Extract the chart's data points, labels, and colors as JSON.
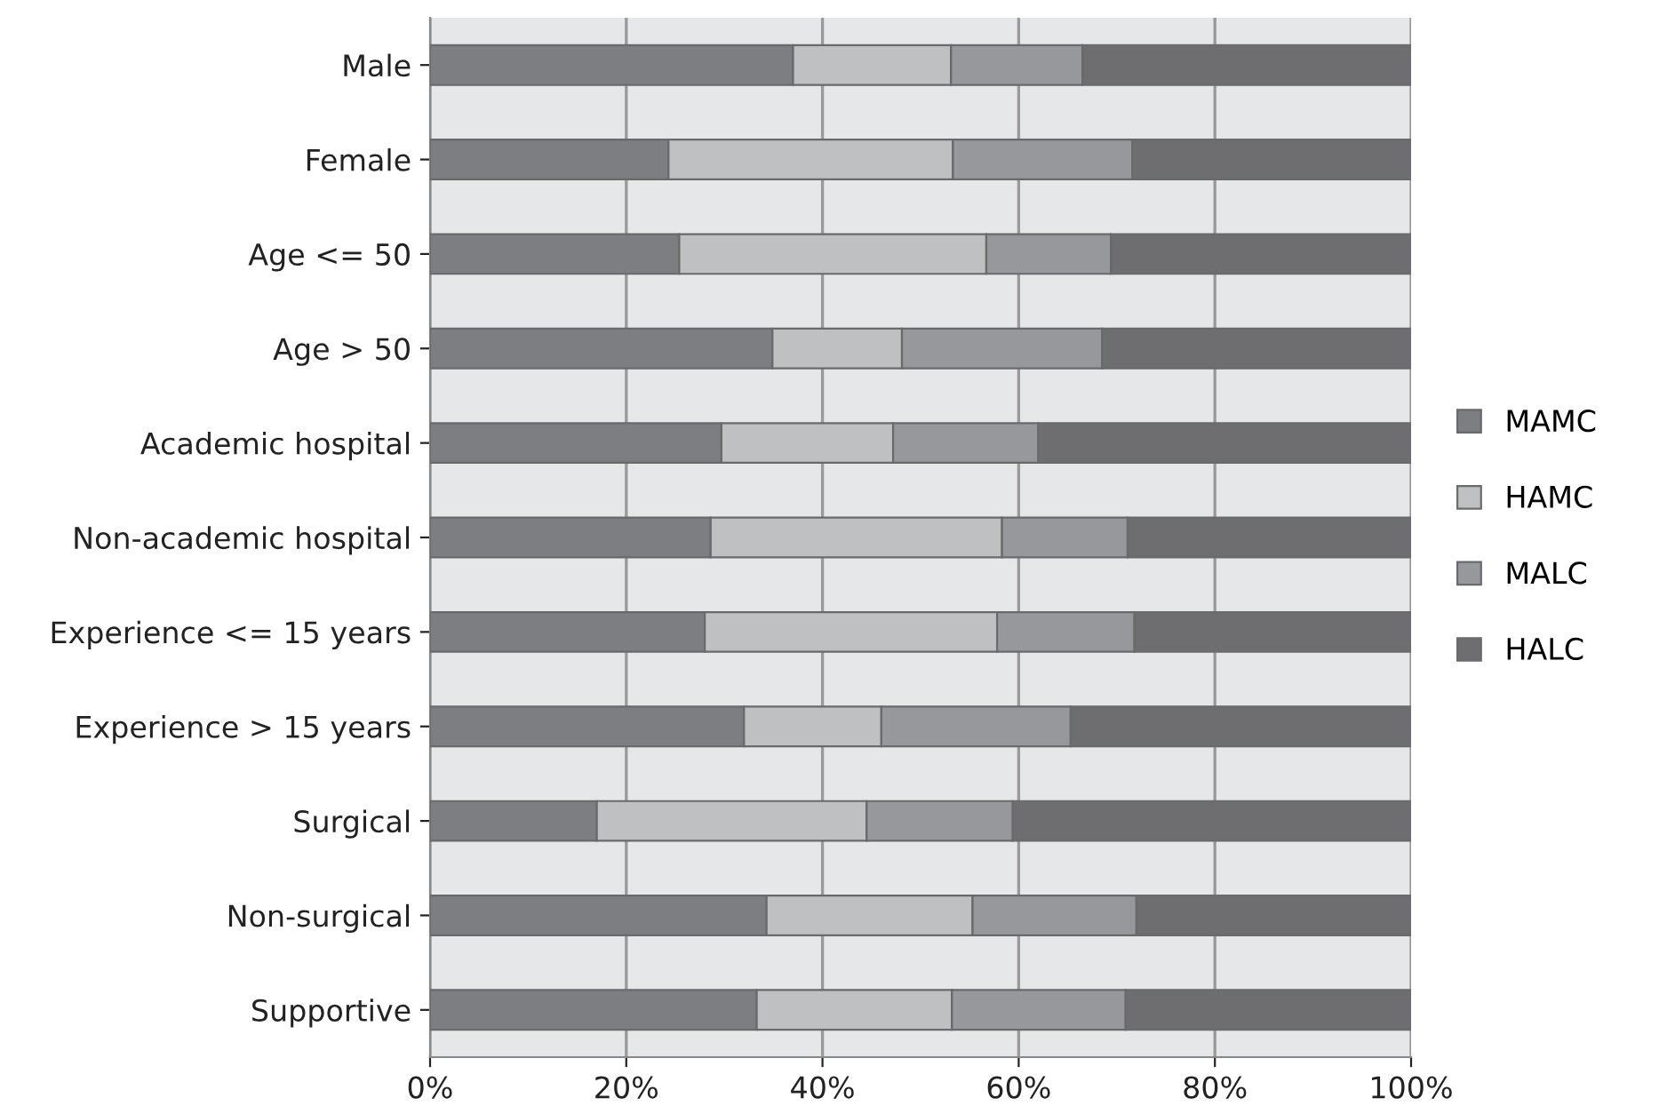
{
  "chart_data": {
    "type": "bar",
    "orientation": "horizontal",
    "stacked": true,
    "categories": [
      "Male",
      "Female",
      "Age <= 50",
      "Age > 50",
      "Academic hospital",
      "Non-academic hospital",
      "Experience <= 15 years",
      "Experience > 15 years",
      "Surgical",
      "Non-surgical",
      "Supportive"
    ],
    "series": [
      {
        "name": "MAMC",
        "color": "#7d7e82",
        "values": [
          37.0,
          24.3,
          25.4,
          34.9,
          29.7,
          28.6,
          28.0,
          32.0,
          17.0,
          34.3,
          33.3
        ]
      },
      {
        "name": "HAMC",
        "color": "#bfc0c2",
        "values": [
          16.1,
          29.0,
          31.3,
          13.2,
          17.5,
          29.7,
          29.8,
          14.0,
          27.5,
          21.0,
          19.9
        ]
      },
      {
        "name": "MALC",
        "color": "#97989c",
        "values": [
          13.4,
          18.3,
          12.7,
          20.4,
          14.8,
          12.8,
          14.0,
          19.3,
          14.9,
          16.7,
          17.7
        ]
      },
      {
        "name": "HALC",
        "color": "#6e6e70",
        "values": [
          33.5,
          28.4,
          30.6,
          31.5,
          38.0,
          28.9,
          28.2,
          34.7,
          40.6,
          28.0,
          29.1
        ]
      }
    ],
    "xlim": [
      0,
      100
    ],
    "xticks": [
      {
        "value": 0,
        "label": "0%"
      },
      {
        "value": 20,
        "label": "20%"
      },
      {
        "value": 40,
        "label": "40%"
      },
      {
        "value": 60,
        "label": "60%"
      },
      {
        "value": 80,
        "label": "80%"
      },
      {
        "value": 100,
        "label": "100%"
      }
    ],
    "grid": "x",
    "legend": "right"
  }
}
